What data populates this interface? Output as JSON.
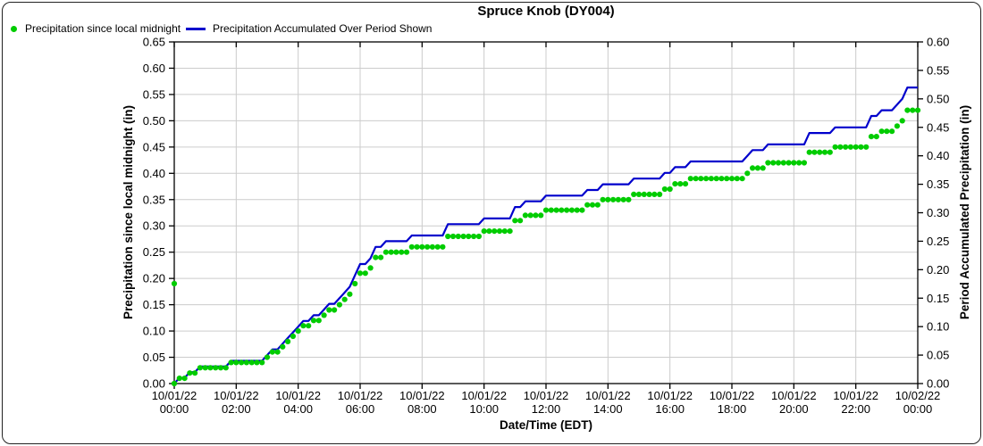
{
  "title": "Spruce Knob (DY004)",
  "colors": {
    "dots": "#00cc00",
    "line": "#0000cc",
    "grid": "#cccccc",
    "axis": "#000000"
  },
  "legend": [
    {
      "label": "Precipitation since local midnight",
      "marker": "dot",
      "color": "#00cc00"
    },
    {
      "label": "Precipitation Accumulated Over Period Shown",
      "marker": "line",
      "color": "#0000cc"
    }
  ],
  "chart_data": {
    "type": "line",
    "title": "Spruce Knob (DY004)",
    "xlabel": "Date/Time (EDT)",
    "ylabel_left": "Precipitation since local midnight (in)",
    "ylabel_right": "Period Accumulated Precipitation (in)",
    "ylim_left": [
      0,
      0.65
    ],
    "ylim_right": [
      0,
      0.6
    ],
    "y_tick_step": 0.05,
    "grid": true,
    "x_range_hours": 24,
    "x_tick_interval_hours": 2,
    "x_tick_labels": [
      [
        "10/01/22",
        "00:00"
      ],
      [
        "10/01/22",
        "02:00"
      ],
      [
        "10/01/22",
        "04:00"
      ],
      [
        "10/01/22",
        "06:00"
      ],
      [
        "10/01/22",
        "08:00"
      ],
      [
        "10/01/22",
        "10:00"
      ],
      [
        "10/01/22",
        "12:00"
      ],
      [
        "10/01/22",
        "14:00"
      ],
      [
        "10/01/22",
        "16:00"
      ],
      [
        "10/01/22",
        "18:00"
      ],
      [
        "10/01/22",
        "20:00"
      ],
      [
        "10/01/22",
        "22:00"
      ],
      [
        "10/02/22",
        "00:00"
      ]
    ],
    "sample_interval_minutes": 10,
    "series": [
      {
        "name": "Precipitation since local midnight",
        "type": "scatter",
        "axis": "left",
        "color": "#00cc00",
        "extra_points": [
          [
            0,
            0.19
          ]
        ]
      },
      {
        "name": "Precipitation Accumulated Over Period Shown",
        "type": "line",
        "axis": "right",
        "color": "#0000cc"
      }
    ],
    "values_in": [
      0.0,
      0.01,
      0.01,
      0.02,
      0.02,
      0.03,
      0.03,
      0.03,
      0.03,
      0.03,
      0.03,
      0.04,
      0.04,
      0.04,
      0.04,
      0.04,
      0.04,
      0.04,
      0.05,
      0.06,
      0.06,
      0.07,
      0.08,
      0.09,
      0.1,
      0.11,
      0.11,
      0.12,
      0.12,
      0.13,
      0.14,
      0.14,
      0.15,
      0.16,
      0.17,
      0.19,
      0.21,
      0.21,
      0.22,
      0.24,
      0.24,
      0.25,
      0.25,
      0.25,
      0.25,
      0.25,
      0.26,
      0.26,
      0.26,
      0.26,
      0.26,
      0.26,
      0.26,
      0.28,
      0.28,
      0.28,
      0.28,
      0.28,
      0.28,
      0.28,
      0.29,
      0.29,
      0.29,
      0.29,
      0.29,
      0.29,
      0.31,
      0.31,
      0.32,
      0.32,
      0.32,
      0.32,
      0.33,
      0.33,
      0.33,
      0.33,
      0.33,
      0.33,
      0.33,
      0.33,
      0.34,
      0.34,
      0.34,
      0.35,
      0.35,
      0.35,
      0.35,
      0.35,
      0.35,
      0.36,
      0.36,
      0.36,
      0.36,
      0.36,
      0.36,
      0.37,
      0.37,
      0.38,
      0.38,
      0.38,
      0.39,
      0.39,
      0.39,
      0.39,
      0.39,
      0.39,
      0.39,
      0.39,
      0.39,
      0.39,
      0.39,
      0.4,
      0.41,
      0.41,
      0.41,
      0.42,
      0.42,
      0.42,
      0.42,
      0.42,
      0.42,
      0.42,
      0.42,
      0.44,
      0.44,
      0.44,
      0.44,
      0.44,
      0.45,
      0.45,
      0.45,
      0.45,
      0.45,
      0.45,
      0.45,
      0.47,
      0.47,
      0.48,
      0.48,
      0.48,
      0.49,
      0.5,
      0.52,
      0.52,
      0.52
    ]
  }
}
